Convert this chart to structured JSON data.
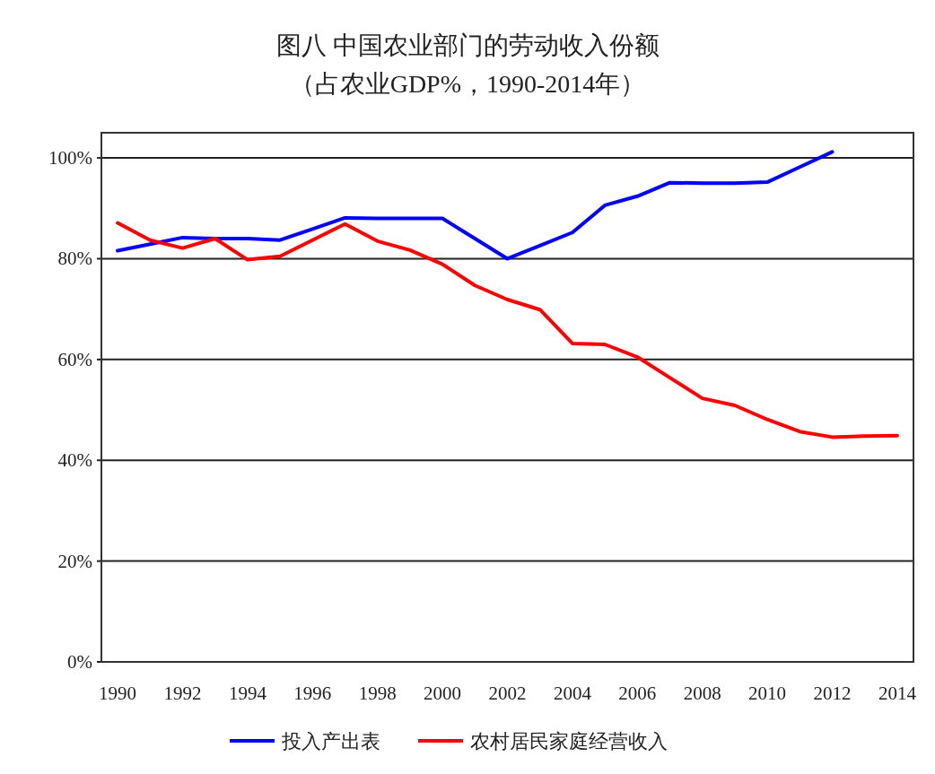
{
  "chart_data": {
    "type": "line",
    "title": "图八 中国农业部门的劳动收入份额",
    "subtitle": "（占农业GDP%，1990-2014年）",
    "x": [
      1990,
      1991,
      1992,
      1993,
      1994,
      1995,
      1996,
      1997,
      1998,
      1999,
      2000,
      2001,
      2002,
      2003,
      2004,
      2005,
      2006,
      2007,
      2008,
      2009,
      2010,
      2011,
      2012,
      2013,
      2014
    ],
    "series": [
      {
        "name": "投入产出表",
        "color": "#0000ff",
        "values": [
          81.6,
          82.9,
          84.2,
          84.0,
          84.0,
          83.7,
          85.9,
          88.1,
          88.0,
          88.0,
          88.0,
          84.0,
          80.0,
          82.6,
          85.2,
          90.6,
          92.4,
          95.1,
          95.0,
          95.0,
          95.2,
          98.2,
          101.2,
          null,
          null
        ]
      },
      {
        "name": "农村居民家庭经营收入",
        "color": "#ff0000",
        "values": [
          87.1,
          83.7,
          82.1,
          84.0,
          79.8,
          80.5,
          83.7,
          86.9,
          83.5,
          81.7,
          78.9,
          74.7,
          71.9,
          69.9,
          63.2,
          63.0,
          60.5,
          56.4,
          52.3,
          50.9,
          48.1,
          45.7,
          44.6,
          44.8,
          44.9
        ]
      }
    ],
    "xlim": [
      1989.5,
      2014.5
    ],
    "xticks": [
      1990,
      1992,
      1994,
      1996,
      1998,
      2000,
      2002,
      2004,
      2006,
      2008,
      2010,
      2012,
      2014
    ],
    "ylim": [
      0,
      105
    ],
    "yticks": [
      {
        "value": 0,
        "label": "0%"
      },
      {
        "value": 20,
        "label": "20%"
      },
      {
        "value": 40,
        "label": "40%"
      },
      {
        "value": 60,
        "label": "60%"
      },
      {
        "value": 80,
        "label": "80%"
      },
      {
        "value": 100,
        "label": "100%"
      }
    ],
    "grid": "y",
    "legend": "bottom",
    "line_style": "solid",
    "marker": "none"
  }
}
